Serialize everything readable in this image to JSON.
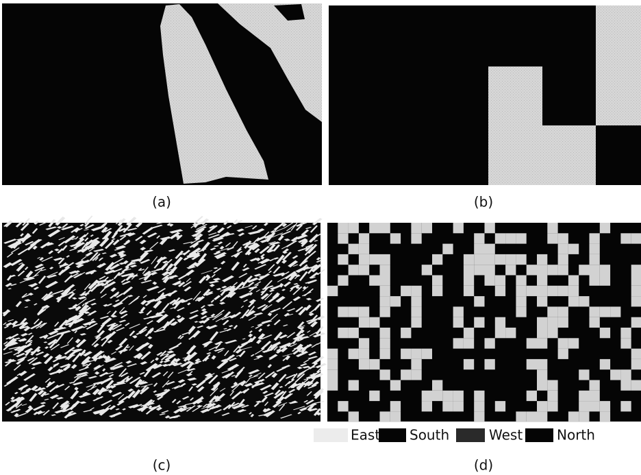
{
  "panels": [
    {
      "caption": "(a)"
    },
    {
      "caption": "(b)"
    },
    {
      "caption": "(c)"
    },
    {
      "caption": "(d)"
    }
  ],
  "legend": [
    "East",
    "South",
    "West",
    "North"
  ]
}
